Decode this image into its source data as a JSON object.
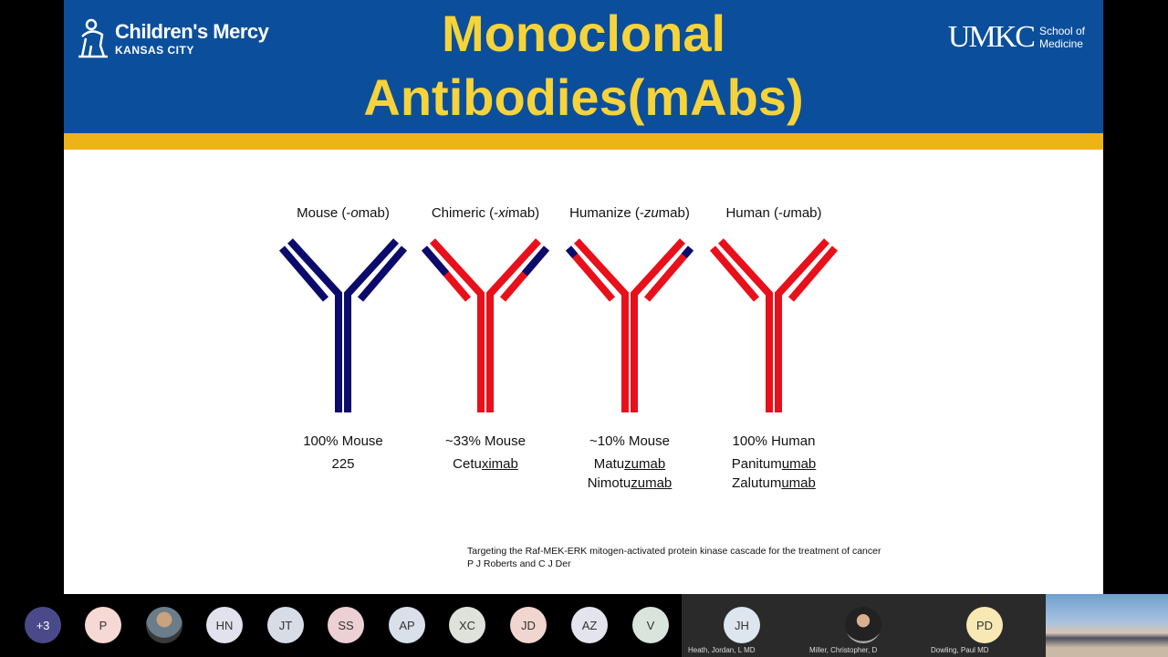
{
  "slide": {
    "title_line1": "Monoclonal",
    "title_line2": "Antibodies(mAbs)",
    "logo_left": {
      "name": "Children's Mercy",
      "sub": "KANSAS CITY"
    },
    "logo_right": {
      "mark": "UMKC",
      "school_line1": "School of",
      "school_line2": "Medicine"
    },
    "colors": {
      "header": "#0b4f9c",
      "gold": "#efb31a",
      "title": "#f7d33a",
      "mouse": "#0b0b6b",
      "human": "#e8101a"
    },
    "antibodies": [
      {
        "label_pre": "Mouse (-",
        "label_it": "o",
        "label_post": "mab)",
        "percent": "100% Mouse",
        "examples": [
          {
            "pre": "225",
            "u": ""
          }
        ]
      },
      {
        "label_pre": "Chimeric (-",
        "label_it": "xi",
        "label_post": "mab)",
        "percent": "~33% Mouse",
        "examples": [
          {
            "pre": "Cetu",
            "u": "ximab"
          }
        ]
      },
      {
        "label_pre": "Humanize (-",
        "label_it": "zu",
        "label_post": "mab)",
        "percent": "~10% Mouse",
        "examples": [
          {
            "pre": "Matu",
            "u": "zumab"
          },
          {
            "pre": "Nimotu",
            "u": "zumab"
          }
        ]
      },
      {
        "label_pre": "Human (-",
        "label_it": "u",
        "label_post": "mab)",
        "percent": "100% Human",
        "examples": [
          {
            "pre": "Panitum",
            "u": "umab"
          },
          {
            "pre": "Zalutum",
            "u": "umab"
          }
        ]
      }
    ],
    "citation_line1": "Targeting the Raf-MEK-ERK mitogen-activated protein kinase cascade for the treatment of cancer",
    "citation_line2": "P J Roberts and C J Der"
  },
  "participants": [
    {
      "initials": "+3",
      "color": "#4a4a8a",
      "text": "#fff"
    },
    {
      "initials": "P",
      "color": "#f6d8d4"
    },
    {
      "initials": "",
      "photo": true
    },
    {
      "initials": "HN",
      "color": "#e2e2ee"
    },
    {
      "initials": "JT",
      "color": "#d6dde6"
    },
    {
      "initials": "SS",
      "color": "#ecd0d4"
    },
    {
      "initials": "AP",
      "color": "#d9e0ea"
    },
    {
      "initials": "XC",
      "color": "#dfe2da"
    },
    {
      "initials": "JD",
      "color": "#f1d6cf"
    },
    {
      "initials": "AZ",
      "color": "#e4e4ee"
    },
    {
      "initials": "V",
      "color": "#d8e4dc"
    }
  ],
  "tiles": [
    {
      "initials": "JH",
      "color": "#dde6ee",
      "name": "Heath, Jordan, L MD"
    },
    {
      "initials": "",
      "photo": true,
      "name": "Miller, Christopher, D"
    },
    {
      "initials": "PD",
      "color": "#f7e8b4",
      "name": "Dowling, Paul MD"
    }
  ]
}
